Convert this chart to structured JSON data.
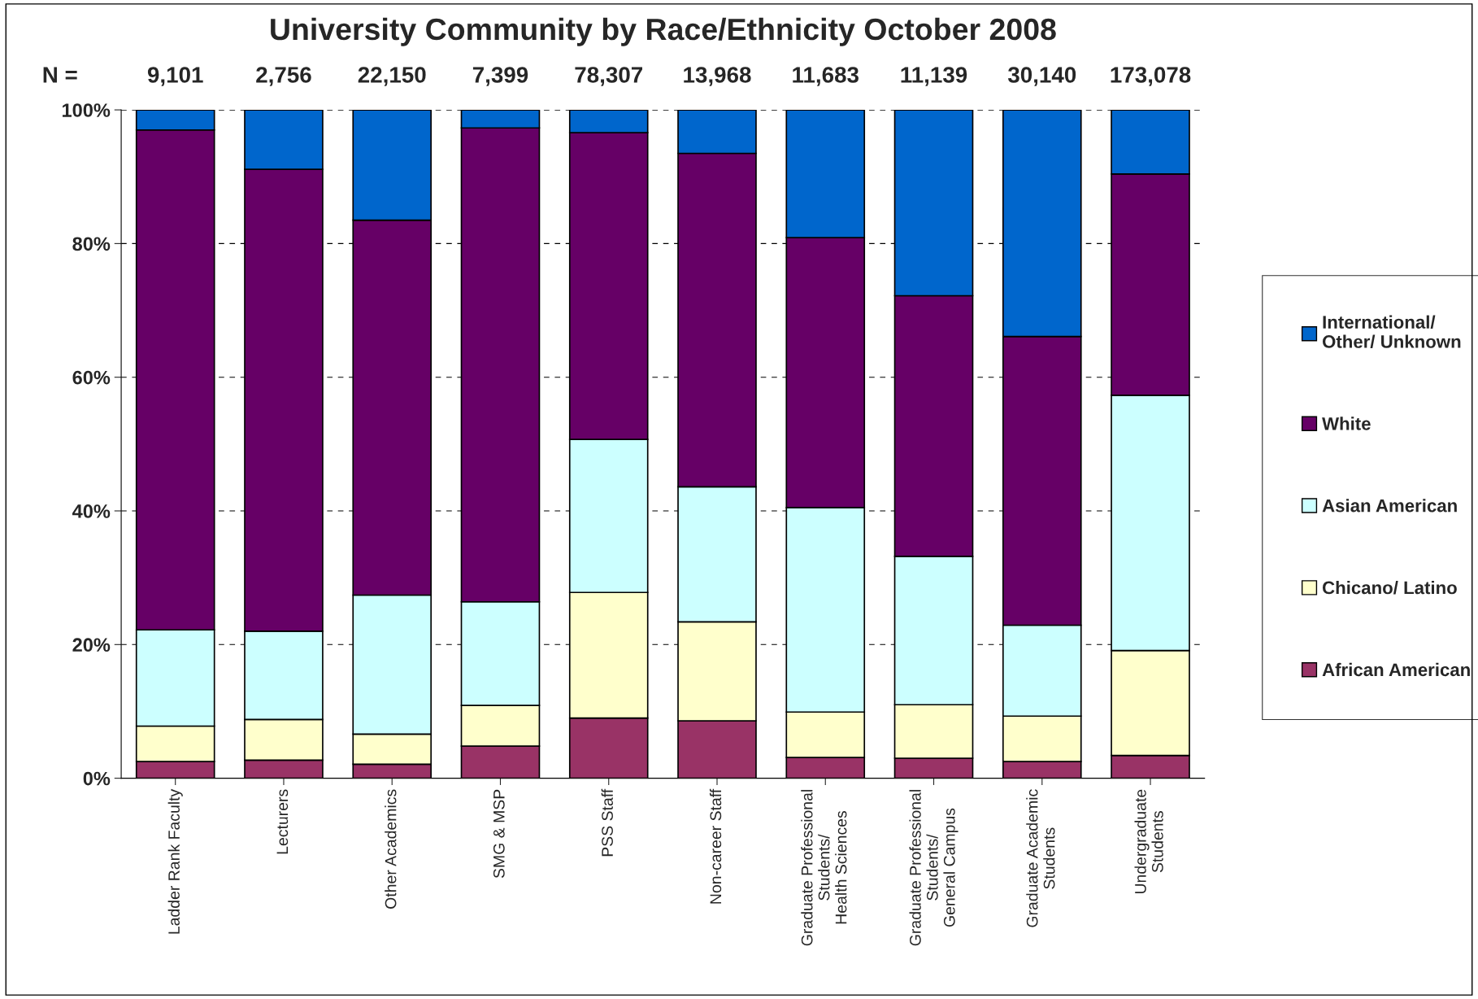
{
  "chart_data": {
    "type": "bar",
    "stacked": true,
    "title": "University Community by Race/Ethnicity October 2008",
    "categories": [
      "Ladder Rank Faculty",
      "Lecturers",
      "Other Academics",
      "SMG & MSP",
      "PSS Staff",
      "Non-career Staff",
      "Graduate Professional\nStudents/\nHealth Sciences",
      "Graduate Professional\nStudents/\nGeneral Campus",
      "Graduate Academic\nStudents",
      "Undergraduate\nStudents"
    ],
    "series": [
      {
        "name": "African American",
        "color": "#993366",
        "values": [
          2.5,
          2.7,
          2.1,
          4.8,
          9.0,
          8.6,
          3.1,
          3.0,
          2.5,
          3.4
        ]
      },
      {
        "name": "Chicano/ Latino",
        "color": "#ffffcc",
        "values": [
          5.3,
          6.1,
          4.5,
          6.1,
          18.8,
          14.8,
          6.8,
          8.0,
          6.8,
          15.7
        ]
      },
      {
        "name": "Asian American",
        "color": "#ccffff",
        "values": [
          14.4,
          13.2,
          20.8,
          15.5,
          22.9,
          20.2,
          30.6,
          22.2,
          13.6,
          38.2
        ]
      },
      {
        "name": "White",
        "color": "#660066",
        "values": [
          74.8,
          69.1,
          56.1,
          70.9,
          45.9,
          49.9,
          40.4,
          39.0,
          43.2,
          33.1
        ]
      },
      {
        "name": "International/\nOther/ Unknown",
        "color": "#0066cc",
        "values": [
          3.0,
          8.9,
          16.5,
          2.7,
          3.4,
          6.5,
          19.1,
          27.8,
          33.9,
          9.6
        ]
      }
    ],
    "ylim": [
      0,
      100
    ],
    "yticks": [
      {
        "value": 0,
        "label": "0%"
      },
      {
        "value": 20,
        "label": "20%"
      },
      {
        "value": 40,
        "label": "40%"
      },
      {
        "value": 60,
        "label": "60%"
      },
      {
        "value": 80,
        "label": "80%"
      },
      {
        "value": 100,
        "label": "100%"
      }
    ],
    "grid": "y",
    "legend": "right",
    "annotations": [
      "N =",
      "9,101",
      "2,756",
      "22,150",
      "7,399",
      "78,307",
      "13,968",
      "11,683",
      "11,139",
      "30,140",
      "173,078"
    ]
  }
}
